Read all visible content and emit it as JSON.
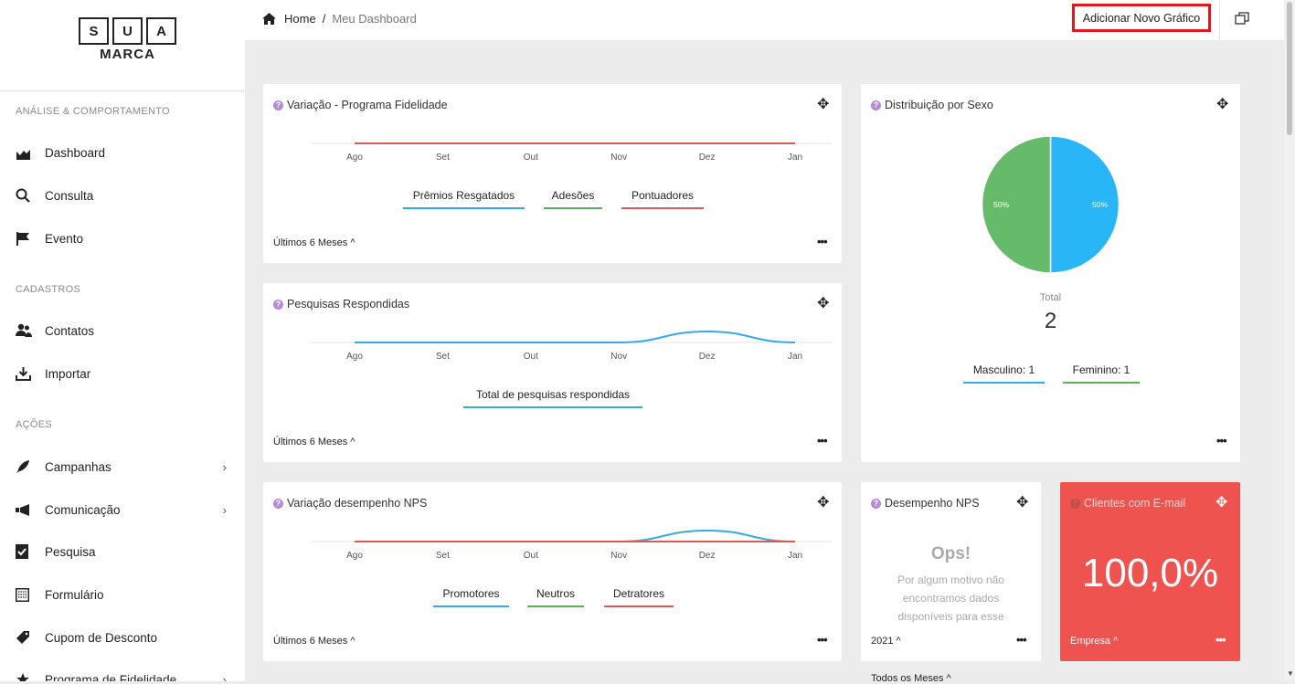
{
  "logo": {
    "letters": [
      "S",
      "U",
      "A"
    ],
    "brand": "MARCA"
  },
  "sidebar": {
    "sections": [
      "ANÁLISE & COMPORTAMENTO",
      "CADASTROS",
      "AÇÕES"
    ],
    "items": [
      {
        "label": "Dashboard",
        "icon": "chart-icon"
      },
      {
        "label": "Consulta",
        "icon": "search-icon"
      },
      {
        "label": "Evento",
        "icon": "flag-icon"
      },
      {
        "label": "Contatos",
        "icon": "users-icon"
      },
      {
        "label": "Importar",
        "icon": "download-icon"
      },
      {
        "label": "Campanhas",
        "icon": "rocket-icon"
      },
      {
        "label": "Comunicação",
        "icon": "megaphone-icon"
      },
      {
        "label": "Pesquisa",
        "icon": "survey-icon"
      },
      {
        "label": "Formulário",
        "icon": "form-icon"
      },
      {
        "label": "Cupom de Desconto",
        "icon": "tag-icon"
      },
      {
        "label": "Programa de Fidelidade",
        "icon": "star-icon"
      }
    ],
    "chevron": "›"
  },
  "topbar": {
    "home": "Home",
    "separator": "/",
    "current": "Meu Dashboard",
    "add_button": "Adicionar Novo Gráfico"
  },
  "months": [
    "Ago",
    "Set",
    "Out",
    "Nov",
    "Dez",
    "Jan"
  ],
  "cards": {
    "fidelidade": {
      "title": "Variação - Programa Fidelidade",
      "legend": [
        "Prêmios Resgatados",
        "Adesões",
        "Pontuadores"
      ],
      "footer": "Últimos 6 Meses"
    },
    "pesquisas": {
      "title": "Pesquisas Respondidas",
      "legend": [
        "Total de pesquisas respondidas"
      ],
      "footer": "Últimos 6 Meses"
    },
    "nps_var": {
      "title": "Variação desempenho NPS",
      "legend": [
        "Promotores",
        "Neutros",
        "Detratores"
      ],
      "footer": "Últimos 6 Meses"
    },
    "sexo": {
      "title": "Distribuição por Sexo",
      "total_label": "Total",
      "total_value": "2",
      "legend": [
        "Masculino: 1",
        "Feminino: 1"
      ],
      "slice_labels": [
        "50%",
        "50%"
      ]
    },
    "nps": {
      "title": "Desempenho NPS",
      "ops": "Ops!",
      "message": "Por algum motivo não encontramos dados disponíveis para esse",
      "footer": "2021"
    },
    "email": {
      "title": "Clientes com E-mail",
      "value": "100,0%",
      "footer": "Empresa"
    },
    "below_footer": "Todos os Meses"
  },
  "chart_data": [
    {
      "type": "line",
      "x": [
        "Ago",
        "Set",
        "Out",
        "Nov",
        "Dez",
        "Jan"
      ],
      "series": [
        {
          "name": "Prêmios Resgatados",
          "values": [
            0,
            0,
            0,
            0,
            0,
            0
          ],
          "color": "#36a9e8"
        },
        {
          "name": "Adesões",
          "values": [
            0,
            0,
            0,
            0,
            0,
            0
          ],
          "color": "#5aae5e"
        },
        {
          "name": "Pontuadores",
          "values": [
            0,
            0,
            0,
            0,
            0,
            0
          ],
          "color": "#d85b54"
        }
      ]
    },
    {
      "type": "line",
      "x": [
        "Ago",
        "Set",
        "Out",
        "Nov",
        "Dez",
        "Jan"
      ],
      "series": [
        {
          "name": "Total de pesquisas respondidas",
          "values": [
            0,
            0,
            0,
            0,
            1,
            0
          ],
          "color": "#36a9e8"
        }
      ]
    },
    {
      "type": "line",
      "x": [
        "Ago",
        "Set",
        "Out",
        "Nov",
        "Dez",
        "Jan"
      ],
      "series": [
        {
          "name": "Promotores",
          "values": [
            0,
            0,
            0,
            0,
            1,
            0
          ],
          "color": "#36a9e8"
        },
        {
          "name": "Neutros",
          "values": [
            0,
            0,
            0,
            0,
            0,
            0
          ],
          "color": "#5aae5e"
        },
        {
          "name": "Detratores",
          "values": [
            0,
            0,
            0,
            0,
            0,
            0
          ],
          "color": "#d85b54"
        }
      ]
    },
    {
      "type": "pie",
      "categories": [
        "Masculino",
        "Feminino"
      ],
      "values": [
        1,
        1
      ],
      "colors": [
        "#29b6f6",
        "#66bb6a"
      ]
    }
  ],
  "colors": {
    "accent_red": "#ef5350",
    "blue": "#36a9e8",
    "green": "#5aae5e",
    "red": "#d85b54",
    "highlight_border": "#e0181f"
  }
}
